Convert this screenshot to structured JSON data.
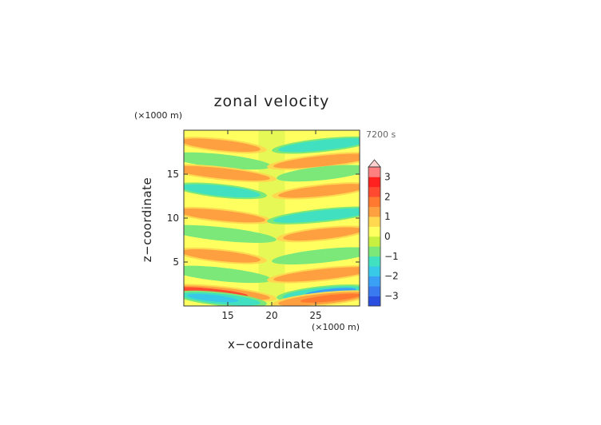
{
  "chart_data": {
    "type": "heatmap",
    "title": "zonal velocity",
    "xlabel": "x−coordinate",
    "ylabel": "z−coordinate",
    "x_unit": "(×1000 m)",
    "y_unit": "(×1000 m)",
    "time_label": "7200 s",
    "xlim": [
      10,
      30
    ],
    "ylim": [
      0,
      20
    ],
    "x_ticks": [
      "15",
      "20",
      "25"
    ],
    "x_tick_values": [
      15,
      20,
      25
    ],
    "y_ticks": [
      "5",
      "10",
      "15"
    ],
    "y_tick_values": [
      5,
      10,
      15
    ],
    "colorbar": {
      "ticks": [
        "3",
        "2",
        "1",
        "0",
        "−1",
        "−2",
        "−3"
      ],
      "tick_values": [
        3,
        2,
        1,
        0,
        -1,
        -2,
        -3
      ],
      "range": [
        -3.5,
        3.5
      ],
      "extend": "max"
    },
    "colors": {
      "background_field": "#ffff60",
      "positive_1": "#ffa040",
      "negative_1": "#40d8d8"
    },
    "field_bands": [
      {
        "side": "left",
        "z": 18.3,
        "value": 1.1
      },
      {
        "side": "left",
        "z": 16.5,
        "value": -1.0
      },
      {
        "side": "left",
        "z": 15.1,
        "value": 1.0
      },
      {
        "side": "left",
        "z": 13.1,
        "value": -1.1
      },
      {
        "side": "left",
        "z": 10.3,
        "value": 1.2
      },
      {
        "side": "left",
        "z": 8.2,
        "value": -1.0
      },
      {
        "side": "left",
        "z": 5.7,
        "value": 1.0
      },
      {
        "side": "left",
        "z": 3.6,
        "value": -1.0
      },
      {
        "side": "left",
        "z": 1.5,
        "value": 2.2
      },
      {
        "side": "left",
        "z": 0.8,
        "value": -1.8
      },
      {
        "side": "right",
        "z": 18.3,
        "value": -1.1
      },
      {
        "side": "right",
        "z": 16.5,
        "value": 1.0
      },
      {
        "side": "right",
        "z": 15.1,
        "value": -1.0
      },
      {
        "side": "right",
        "z": 13.1,
        "value": 1.1
      },
      {
        "side": "right",
        "z": 10.3,
        "value": -1.2
      },
      {
        "side": "right",
        "z": 8.2,
        "value": 1.0
      },
      {
        "side": "right",
        "z": 5.7,
        "value": -1.0
      },
      {
        "side": "right",
        "z": 3.6,
        "value": 1.0
      },
      {
        "side": "right",
        "z": 1.5,
        "value": -2.2
      },
      {
        "side": "right",
        "z": 0.8,
        "value": 1.8
      }
    ]
  }
}
